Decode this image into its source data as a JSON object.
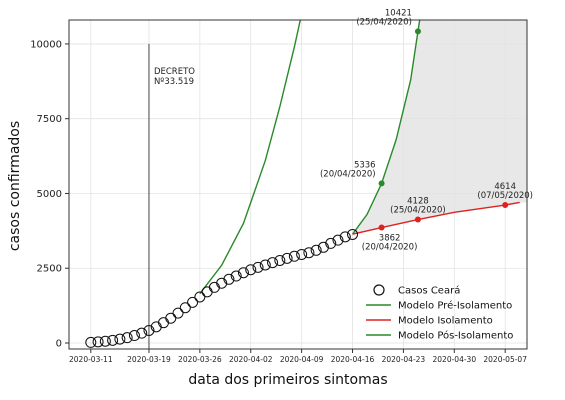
{
  "chart_data": {
    "type": "line",
    "title": "",
    "xlabel": "data dos primeiros sintomas",
    "ylabel": "casos confirmados",
    "x_ticks": [
      "2020-03-11",
      "2020-03-19",
      "2020-03-26",
      "2020-04-02",
      "2020-04-09",
      "2020-04-16",
      "2020-04-23",
      "2020-04-30",
      "2020-05-07"
    ],
    "x_range": [
      "2020-03-08",
      "2020-05-10"
    ],
    "y_ticks": [
      0,
      2500,
      5000,
      7500,
      10000
    ],
    "ylim": [
      -200,
      10800
    ],
    "grid": true,
    "legend_position": "lower-right",
    "decree": {
      "date": "2020-03-19",
      "label_line1": "DECRETO",
      "label_line2": "Nº33.519"
    },
    "shaded_region": {
      "from": "2020-04-16",
      "color": "#e8e8e8"
    },
    "series": [
      {
        "name": "Casos Ceará",
        "kind": "markers",
        "x": [
          "2020-03-11",
          "2020-03-12",
          "2020-03-13",
          "2020-03-14",
          "2020-03-15",
          "2020-03-16",
          "2020-03-17",
          "2020-03-18",
          "2020-03-19",
          "2020-03-20",
          "2020-03-21",
          "2020-03-22",
          "2020-03-23",
          "2020-03-24",
          "2020-03-25",
          "2020-03-26",
          "2020-03-27",
          "2020-03-28",
          "2020-03-29",
          "2020-03-30",
          "2020-03-31",
          "2020-04-01",
          "2020-04-02",
          "2020-04-03",
          "2020-04-04",
          "2020-04-05",
          "2020-04-06",
          "2020-04-07",
          "2020-04-08",
          "2020-04-09",
          "2020-04-10",
          "2020-04-11",
          "2020-04-12",
          "2020-04-13",
          "2020-04-14",
          "2020-04-15",
          "2020-04-16"
        ],
        "values": [
          20,
          40,
          60,
          90,
          130,
          180,
          250,
          330,
          420,
          540,
          680,
          830,
          1000,
          1180,
          1360,
          1540,
          1710,
          1860,
          2000,
          2130,
          2240,
          2350,
          2450,
          2530,
          2610,
          2690,
          2760,
          2830,
          2900,
          2960,
          3020,
          3100,
          3200,
          3330,
          3440,
          3550,
          3630
        ]
      },
      {
        "name": "Modelo Pré-Isolamento",
        "kind": "line",
        "color": "#2a8a2a",
        "x": [
          "2020-03-26",
          "2020-03-29",
          "2020-04-01",
          "2020-04-04",
          "2020-04-06",
          "2020-04-07",
          "2020-04-08",
          "2020-04-09",
          "2020-04-10"
        ],
        "values": [
          1650,
          2600,
          4000,
          6100,
          7900,
          8900,
          9900,
          11000,
          12100
        ]
      },
      {
        "name": "Modelo Isolamento",
        "kind": "line",
        "color": "#dd2222",
        "x": [
          "2020-04-16",
          "2020-04-20",
          "2020-04-25",
          "2020-04-30",
          "2020-05-07",
          "2020-05-09"
        ],
        "values": [
          3640,
          3862,
          4128,
          4370,
          4614,
          4700
        ]
      },
      {
        "name": "Modelo Pós-Isolamento",
        "kind": "line",
        "color": "#2a8a2a",
        "x": [
          "2020-04-16",
          "2020-04-18",
          "2020-04-20",
          "2020-04-22",
          "2020-04-24",
          "2020-04-25",
          "2020-04-26"
        ],
        "values": [
          3640,
          4300,
          5336,
          6800,
          8800,
          10421,
          12000
        ]
      }
    ],
    "annotations": [
      {
        "x": "2020-04-20",
        "y": 5336,
        "color": "#2a8a2a",
        "line1": "5336",
        "line2": "(20/04/2020)",
        "pos": "left-above"
      },
      {
        "x": "2020-04-25",
        "y": 10421,
        "color": "#2a8a2a",
        "line1": "10421",
        "line2": "(25/04/2020)",
        "pos": "left-above"
      },
      {
        "x": "2020-04-20",
        "y": 3862,
        "color": "#dd2222",
        "line1": "3862",
        "line2": "(20/04/2020)",
        "pos": "below"
      },
      {
        "x": "2020-04-25",
        "y": 4128,
        "color": "#dd2222",
        "line1": "4128",
        "line2": "(25/04/2020)",
        "pos": "above"
      },
      {
        "x": "2020-05-07",
        "y": 4614,
        "color": "#dd2222",
        "line1": "4614",
        "line2": "(07/05/2020)",
        "pos": "above"
      }
    ]
  }
}
